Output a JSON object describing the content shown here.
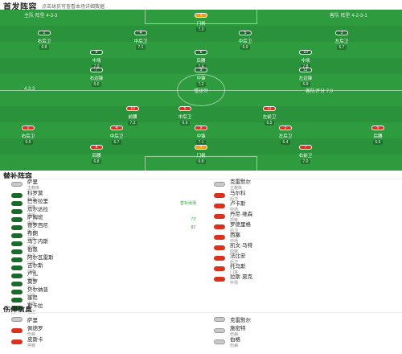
{
  "header": {
    "title": "首发阵容",
    "subtitle": "点击球员可查看本场详细数据"
  },
  "pitch": {
    "home_label": "主队 阵型 4-3-3",
    "away_label": "客队 阵型 4-2-3-1",
    "center_text": "懂球帝",
    "left_score": "4.3.3",
    "right_note": "客队评分 7.0"
  },
  "home_players": [
    {
      "num": "1",
      "name": "门将",
      "rating": "7.3"
    },
    {
      "num": "2",
      "name": "右后卫",
      "rating": "6.8"
    },
    {
      "num": "4",
      "name": "中后卫",
      "rating": "7.1"
    },
    {
      "num": "5",
      "name": "中后卫",
      "rating": "6.9"
    },
    {
      "num": "3",
      "name": "左后卫",
      "rating": "6.7"
    },
    {
      "num": "8",
      "name": "中场",
      "rating": "7.0"
    },
    {
      "num": "6",
      "name": "后腰",
      "rating": "7.4"
    },
    {
      "num": "10",
      "name": "中场",
      "rating": "7.8"
    },
    {
      "num": "7",
      "name": "右边锋",
      "rating": "6.6"
    },
    {
      "num": "9",
      "name": "中锋",
      "rating": "7.2"
    },
    {
      "num": "11",
      "name": "左边锋",
      "rating": "6.9"
    }
  ],
  "away_players": [
    {
      "num": "1",
      "name": "门将",
      "rating": "6.8"
    },
    {
      "num": "2",
      "name": "右后卫",
      "rating": "6.5"
    },
    {
      "num": "4",
      "name": "中后卫",
      "rating": "6.7"
    },
    {
      "num": "5",
      "name": "中后卫",
      "rating": "6.9"
    },
    {
      "num": "3",
      "name": "左后卫",
      "rating": "6.4"
    },
    {
      "num": "6",
      "name": "后腰",
      "rating": "6.6"
    },
    {
      "num": "8",
      "name": "后腰",
      "rating": "6.8"
    },
    {
      "num": "7",
      "name": "右前卫",
      "rating": "7.0"
    },
    {
      "num": "10",
      "name": "前腰",
      "rating": "7.3"
    },
    {
      "num": "11",
      "name": "左前卫",
      "rating": "6.5"
    },
    {
      "num": "9",
      "name": "中锋",
      "rating": "7.1"
    }
  ],
  "subs": {
    "title": "替补阵容",
    "home_coach": {
      "name": "萨里",
      "meta": "主教练"
    },
    "away_coach": {
      "name": "克雷默尔",
      "meta": "主教练"
    },
    "home": [
      {
        "name": "科罗莫",
        "meta": "后卫"
      },
      {
        "name": "巴舍拉里",
        "meta": "前锋",
        "rt": "替补出场"
      },
      {
        "name": "瓜尔达拉",
        "meta": "中场"
      },
      {
        "name": "萨姆班",
        "meta": "中场",
        "rt": "73'"
      },
      {
        "name": "德罗西尼",
        "meta": "后卫",
        "rt": "81'"
      },
      {
        "name": "布朗",
        "meta": "前锋"
      },
      {
        "name": "马丁内斯",
        "meta": "中场"
      },
      {
        "name": "伯恩",
        "meta": "后卫"
      },
      {
        "name": "阿尔瓦雷斯",
        "meta": "门将"
      },
      {
        "name": "吉尔斯",
        "meta": "前锋"
      },
      {
        "name": "卢扎",
        "meta": "中场"
      },
      {
        "name": "莫罗",
        "meta": "后卫"
      },
      {
        "name": "贝尔纳普",
        "meta": "门将"
      },
      {
        "name": "基尼",
        "meta": "中场"
      },
      {
        "name": "斯卡拉",
        "meta": "后卫"
      }
    ],
    "away": [
      {
        "name": "马尔科",
        "meta": "后卫"
      },
      {
        "name": "卢卡斯",
        "meta": "中场"
      },
      {
        "name": "丹尼·维森",
        "meta": "前锋"
      },
      {
        "name": "罗德里格",
        "meta": "后卫"
      },
      {
        "name": "西塞",
        "meta": "中场"
      },
      {
        "name": "凯文·马特",
        "meta": "前锋"
      },
      {
        "name": "法比安",
        "meta": "后卫"
      },
      {
        "name": "托马斯",
        "meta": "门将"
      },
      {
        "name": "拉斯·莫克",
        "meta": "中场"
      }
    ]
  },
  "injury": {
    "title": "伤停信息",
    "home_header": "萨里",
    "away_header": "克雷默尔",
    "home": [
      {
        "name": "佩德罗",
        "meta": "伤病"
      },
      {
        "name": "皮斯卡",
        "meta": "停赛"
      }
    ],
    "away": [
      {
        "name": "施密特",
        "meta": "伤病"
      },
      {
        "name": "伯格",
        "meta": "伤病"
      }
    ]
  }
}
